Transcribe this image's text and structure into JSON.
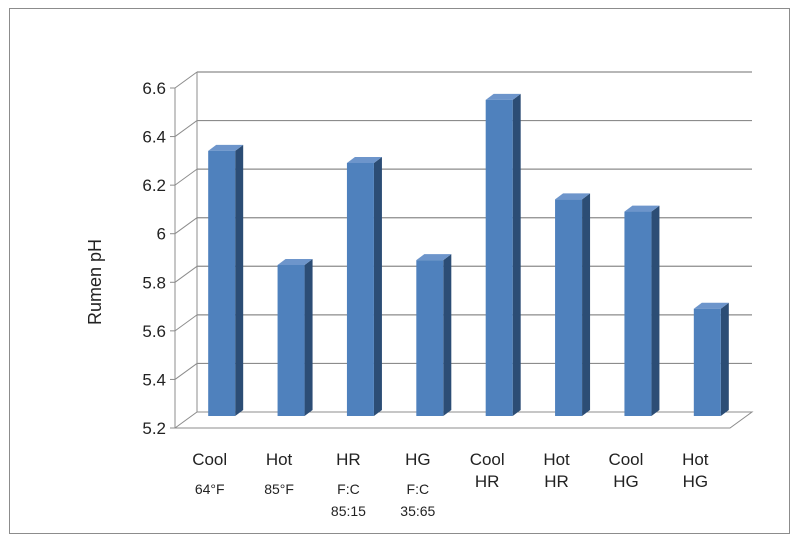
{
  "chart_data": {
    "type": "bar",
    "title": "",
    "xlabel": "",
    "ylabel": "Rumen  pH",
    "ylim": [
      5.2,
      6.6
    ],
    "yticks": [
      "5.2",
      "5.4",
      "5.6",
      "5.8",
      "6",
      "6.2",
      "6.4",
      "6.6"
    ],
    "grid": true,
    "style": "3d-column",
    "bar_color": "#4f81bd",
    "categories": [
      {
        "line1": "Cool",
        "line2": "64°F",
        "line3": ""
      },
      {
        "line1": "Hot",
        "line2": "85°F",
        "line3": ""
      },
      {
        "line1": "HR",
        "line2": "F:C",
        "line3": "85:15"
      },
      {
        "line1": "HG",
        "line2": "F:C",
        "line3": "35:65"
      },
      {
        "line1": "Cool",
        "line2": "HR",
        "line3": ""
      },
      {
        "line1": "Hot",
        "line2": "HR",
        "line3": ""
      },
      {
        "line1": "Cool",
        "line2": "HG",
        "line3": ""
      },
      {
        "line1": "Hot",
        "line2": "HG",
        "line3": ""
      }
    ],
    "values": [
      6.3,
      5.83,
      6.25,
      5.85,
      6.51,
      6.1,
      6.05,
      5.65
    ]
  }
}
